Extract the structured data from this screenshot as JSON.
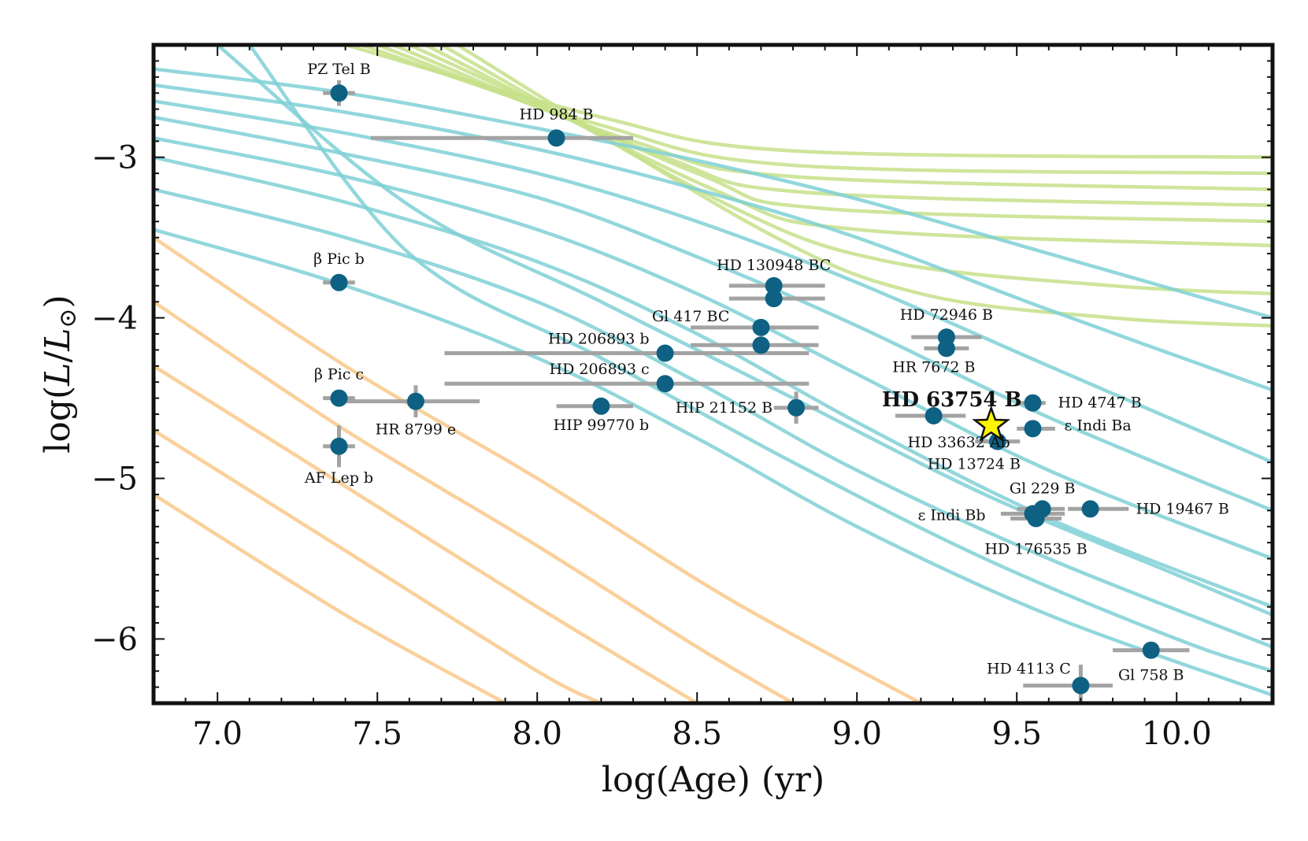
{
  "chart_data": {
    "type": "scatter",
    "title": "",
    "xlabel": "log(Age) (yr)",
    "ylabel": "log(L/L⊙)",
    "xlim": [
      6.8,
      10.3
    ],
    "ylim": [
      -6.4,
      -2.3
    ],
    "x_ticks": [
      "7.0",
      "7.5",
      "8.0",
      "8.5",
      "9.0",
      "9.5",
      "10.0"
    ],
    "y_ticks": [
      "−3",
      "−4",
      "−5",
      "−6"
    ],
    "colors": {
      "point": "#0e6183",
      "errorbar": "#a3a3a3",
      "brown_dwarf_track": "#7fd0d6",
      "star_track": "#c6e08a",
      "planet_track": "#f9c889",
      "highlight": "#fdf500"
    },
    "points": [
      {
        "name": "PZ Tel B",
        "x": 7.38,
        "y": -2.6,
        "xerr": [
          0.05,
          0.05
        ],
        "yerr": [
          0.08,
          0.08
        ]
      },
      {
        "name": "HD 984 B",
        "x": 8.06,
        "y": -2.88,
        "xerr": [
          0.58,
          0.24
        ],
        "yerr": [
          0.02,
          0.02
        ]
      },
      {
        "name": "β Pic b",
        "x": 7.38,
        "y": -3.78,
        "xerr": [
          0.05,
          0.05
        ],
        "yerr": [
          0.02,
          0.02
        ]
      },
      {
        "name": "β Pic c",
        "x": 7.38,
        "y": -4.5,
        "xerr": [
          0.05,
          0.05
        ],
        "yerr": [
          0.03,
          0.03
        ]
      },
      {
        "name": "HR 8799 e",
        "x": 7.62,
        "y": -4.52,
        "xerr": [
          0.22,
          0.2
        ],
        "yerr": [
          0.1,
          0.1
        ]
      },
      {
        "name": "AF Lep b",
        "x": 7.38,
        "y": -4.8,
        "xerr": [
          0.05,
          0.05
        ],
        "yerr": [
          0.13,
          0.13
        ]
      },
      {
        "name": "HD 130948 BC",
        "x": 8.74,
        "y": -3.8,
        "xerr": [
          0.14,
          0.16
        ],
        "yerr": [
          0.02,
          0.02
        ]
      },
      {
        "name": "",
        "x": 8.74,
        "y": -3.88,
        "xerr": [
          0.14,
          0.16
        ],
        "yerr": [
          0.02,
          0.02
        ]
      },
      {
        "name": "Gl 417 BC",
        "x": 8.7,
        "y": -4.06,
        "xerr": [
          0.22,
          0.18
        ],
        "yerr": [
          0.02,
          0.02
        ]
      },
      {
        "name": "",
        "x": 8.7,
        "y": -4.17,
        "xerr": [
          0.22,
          0.18
        ],
        "yerr": [
          0.02,
          0.02
        ]
      },
      {
        "name": "HD 206893 b",
        "x": 8.4,
        "y": -4.22,
        "xerr": [
          0.69,
          0.45
        ],
        "yerr": [
          0.04,
          0.04
        ]
      },
      {
        "name": "HD 206893 c",
        "x": 8.4,
        "y": -4.41,
        "xerr": [
          0.69,
          0.45
        ],
        "yerr": [
          0.04,
          0.04
        ]
      },
      {
        "name": "HIP 99770 b",
        "x": 8.2,
        "y": -4.55,
        "xerr": [
          0.14,
          0.1
        ],
        "yerr": [
          0.03,
          0.03
        ]
      },
      {
        "name": "HIP 21152 B",
        "x": 8.81,
        "y": -4.56,
        "xerr": [
          0.07,
          0.07
        ],
        "yerr": [
          0.1,
          0.1
        ]
      },
      {
        "name": "HD 72946 B",
        "x": 9.28,
        "y": -4.12,
        "xerr": [
          0.11,
          0.11
        ],
        "yerr": [
          0.02,
          0.02
        ]
      },
      {
        "name": "HR 7672 B",
        "x": 9.28,
        "y": -4.19,
        "xerr": [
          0.07,
          0.07
        ],
        "yerr": [
          0.02,
          0.02
        ]
      },
      {
        "name": "HD 33632 Ab",
        "x": 9.24,
        "y": -4.61,
        "xerr": [
          0.12,
          0.1
        ],
        "yerr": [
          0.02,
          0.02
        ]
      },
      {
        "name": "HD 13724 B",
        "x": 9.44,
        "y": -4.77,
        "xerr": [
          0.07,
          0.07
        ],
        "yerr": [
          0.02,
          0.02
        ]
      },
      {
        "name": "HD 4747 B",
        "x": 9.55,
        "y": -4.53,
        "xerr": [
          0.04,
          0.04
        ],
        "yerr": [
          0.02,
          0.02
        ]
      },
      {
        "name": "ε Indi Ba",
        "x": 9.55,
        "y": -4.69,
        "xerr": [
          0.05,
          0.07
        ],
        "yerr": [
          0.02,
          0.02
        ]
      },
      {
        "name": "Gl 229 B",
        "x": 9.58,
        "y": -5.19,
        "xerr": [
          0.08,
          0.07
        ],
        "yerr": [
          0.03,
          0.03
        ]
      },
      {
        "name": "HD 19467 B",
        "x": 9.73,
        "y": -5.19,
        "xerr": [
          0.07,
          0.12
        ],
        "yerr": [
          0.04,
          0.04
        ]
      },
      {
        "name": "ε Indi Bb",
        "x": 9.55,
        "y": -5.22,
        "xerr": [
          0.1,
          0.1
        ],
        "yerr": [
          0.02,
          0.02
        ]
      },
      {
        "name": "HD 176535 B",
        "x": 9.56,
        "y": -5.25,
        "xerr": [
          0.08,
          0.08
        ],
        "yerr": [
          0.03,
          0.03
        ]
      },
      {
        "name": "HD 4113 C",
        "x": 9.7,
        "y": -6.29,
        "xerr": [
          0.18,
          0.1
        ],
        "yerr": [
          0.13,
          0.13
        ]
      },
      {
        "name": "Gl 758 B",
        "x": 9.92,
        "y": -6.07,
        "xerr": [
          0.12,
          0.12
        ],
        "yerr": [
          0.02,
          0.02
        ]
      }
    ],
    "highlight": {
      "name": "HD 63754 B",
      "x": 9.42,
      "y": -4.67,
      "xerr": [
        0.03,
        0.03
      ],
      "yerr": [
        0.02,
        0.02
      ]
    },
    "tracks": {
      "star": [
        [
          [
            7.4,
            -2.3
          ],
          [
            8.2,
            -2.75
          ],
          [
            8.8,
            -2.96
          ],
          [
            10.3,
            -3.0
          ]
        ],
        [
          [
            7.45,
            -2.3
          ],
          [
            8.2,
            -2.8
          ],
          [
            8.8,
            -3.05
          ],
          [
            10.3,
            -3.1
          ]
        ],
        [
          [
            7.5,
            -2.3
          ],
          [
            8.3,
            -2.9
          ],
          [
            8.8,
            -3.12
          ],
          [
            10.3,
            -3.2
          ]
        ],
        [
          [
            7.55,
            -2.3
          ],
          [
            8.4,
            -3.0
          ],
          [
            8.85,
            -3.22
          ],
          [
            10.3,
            -3.3
          ]
        ],
        [
          [
            7.6,
            -2.3
          ],
          [
            8.5,
            -3.1
          ],
          [
            8.9,
            -3.32
          ],
          [
            10.3,
            -3.4
          ]
        ],
        [
          [
            7.65,
            -2.3
          ],
          [
            8.55,
            -3.2
          ],
          [
            9.0,
            -3.45
          ],
          [
            10.3,
            -3.55
          ]
        ],
        [
          [
            7.7,
            -2.3
          ],
          [
            8.6,
            -3.3
          ],
          [
            9.1,
            -3.65
          ],
          [
            9.8,
            -3.8
          ],
          [
            10.3,
            -3.85
          ]
        ],
        [
          [
            7.75,
            -2.3
          ],
          [
            8.7,
            -3.45
          ],
          [
            9.2,
            -3.85
          ],
          [
            9.8,
            -4.0
          ],
          [
            10.3,
            -4.05
          ]
        ]
      ],
      "brown_dwarf": [
        [
          [
            6.8,
            -2.45
          ],
          [
            7.4,
            -2.6
          ],
          [
            8.0,
            -2.82
          ],
          [
            8.5,
            -3.02
          ],
          [
            9.0,
            -3.26
          ],
          [
            9.6,
            -3.6
          ],
          [
            10.3,
            -4.0
          ]
        ],
        [
          [
            6.8,
            -2.55
          ],
          [
            7.4,
            -2.72
          ],
          [
            8.0,
            -2.95
          ],
          [
            8.5,
            -3.2
          ],
          [
            9.0,
            -3.5
          ],
          [
            9.6,
            -3.95
          ],
          [
            10.3,
            -4.45
          ]
        ],
        [
          [
            6.8,
            -2.65
          ],
          [
            7.4,
            -2.85
          ],
          [
            8.0,
            -3.1
          ],
          [
            8.5,
            -3.4
          ],
          [
            9.0,
            -3.78
          ],
          [
            9.6,
            -4.3
          ],
          [
            10.3,
            -4.9
          ]
        ],
        [
          [
            6.8,
            -2.75
          ],
          [
            7.4,
            -2.98
          ],
          [
            8.0,
            -3.25
          ],
          [
            8.5,
            -3.62
          ],
          [
            9.0,
            -4.05
          ],
          [
            9.6,
            -4.62
          ],
          [
            10.3,
            -5.2
          ]
        ],
        [
          [
            6.8,
            -2.88
          ],
          [
            7.4,
            -3.12
          ],
          [
            8.0,
            -3.45
          ],
          [
            8.5,
            -3.85
          ],
          [
            9.0,
            -4.35
          ],
          [
            9.6,
            -4.95
          ],
          [
            10.3,
            -5.5
          ]
        ],
        [
          [
            6.8,
            -3.0
          ],
          [
            7.4,
            -3.28
          ],
          [
            8.0,
            -3.65
          ],
          [
            8.5,
            -4.1
          ],
          [
            9.0,
            -4.65
          ],
          [
            9.6,
            -5.25
          ],
          [
            10.3,
            -5.8
          ]
        ],
        [
          [
            6.8,
            -3.2
          ],
          [
            7.4,
            -3.5
          ],
          [
            8.0,
            -3.9
          ],
          [
            8.5,
            -4.4
          ],
          [
            9.0,
            -4.95
          ],
          [
            9.6,
            -5.5
          ],
          [
            10.3,
            -6.05
          ]
        ],
        [
          [
            6.8,
            -3.45
          ],
          [
            7.4,
            -3.8
          ],
          [
            8.0,
            -4.25
          ],
          [
            8.5,
            -4.75
          ],
          [
            9.0,
            -5.3
          ],
          [
            9.6,
            -5.85
          ],
          [
            10.3,
            -6.35
          ]
        ],
        [
          [
            7.0,
            -2.3
          ],
          [
            7.6,
            -3.3
          ],
          [
            8.2,
            -3.9
          ],
          [
            8.8,
            -4.5
          ],
          [
            9.4,
            -5.1
          ],
          [
            10.0,
            -5.6
          ],
          [
            10.3,
            -5.85
          ]
        ],
        [
          [
            7.1,
            -2.3
          ],
          [
            7.6,
            -3.6
          ],
          [
            8.2,
            -4.25
          ],
          [
            8.8,
            -4.9
          ],
          [
            9.4,
            -5.5
          ],
          [
            10.0,
            -6.0
          ],
          [
            10.3,
            -6.2
          ]
        ]
      ],
      "planet": [
        [
          [
            6.8,
            -3.5
          ],
          [
            7.4,
            -4.3
          ],
          [
            8.0,
            -5.0
          ],
          [
            8.6,
            -5.75
          ],
          [
            9.2,
            -6.4
          ]
        ],
        [
          [
            6.8,
            -3.9
          ],
          [
            7.4,
            -4.7
          ],
          [
            8.0,
            -5.42
          ],
          [
            8.5,
            -6.05
          ],
          [
            8.8,
            -6.4
          ]
        ],
        [
          [
            6.8,
            -4.3
          ],
          [
            7.4,
            -5.05
          ],
          [
            8.0,
            -5.8
          ],
          [
            8.5,
            -6.4
          ]
        ],
        [
          [
            6.8,
            -4.7
          ],
          [
            7.4,
            -5.45
          ],
          [
            8.0,
            -6.2
          ],
          [
            8.2,
            -6.4
          ]
        ],
        [
          [
            6.8,
            -5.1
          ],
          [
            7.4,
            -5.85
          ],
          [
            7.9,
            -6.4
          ]
        ]
      ]
    }
  }
}
